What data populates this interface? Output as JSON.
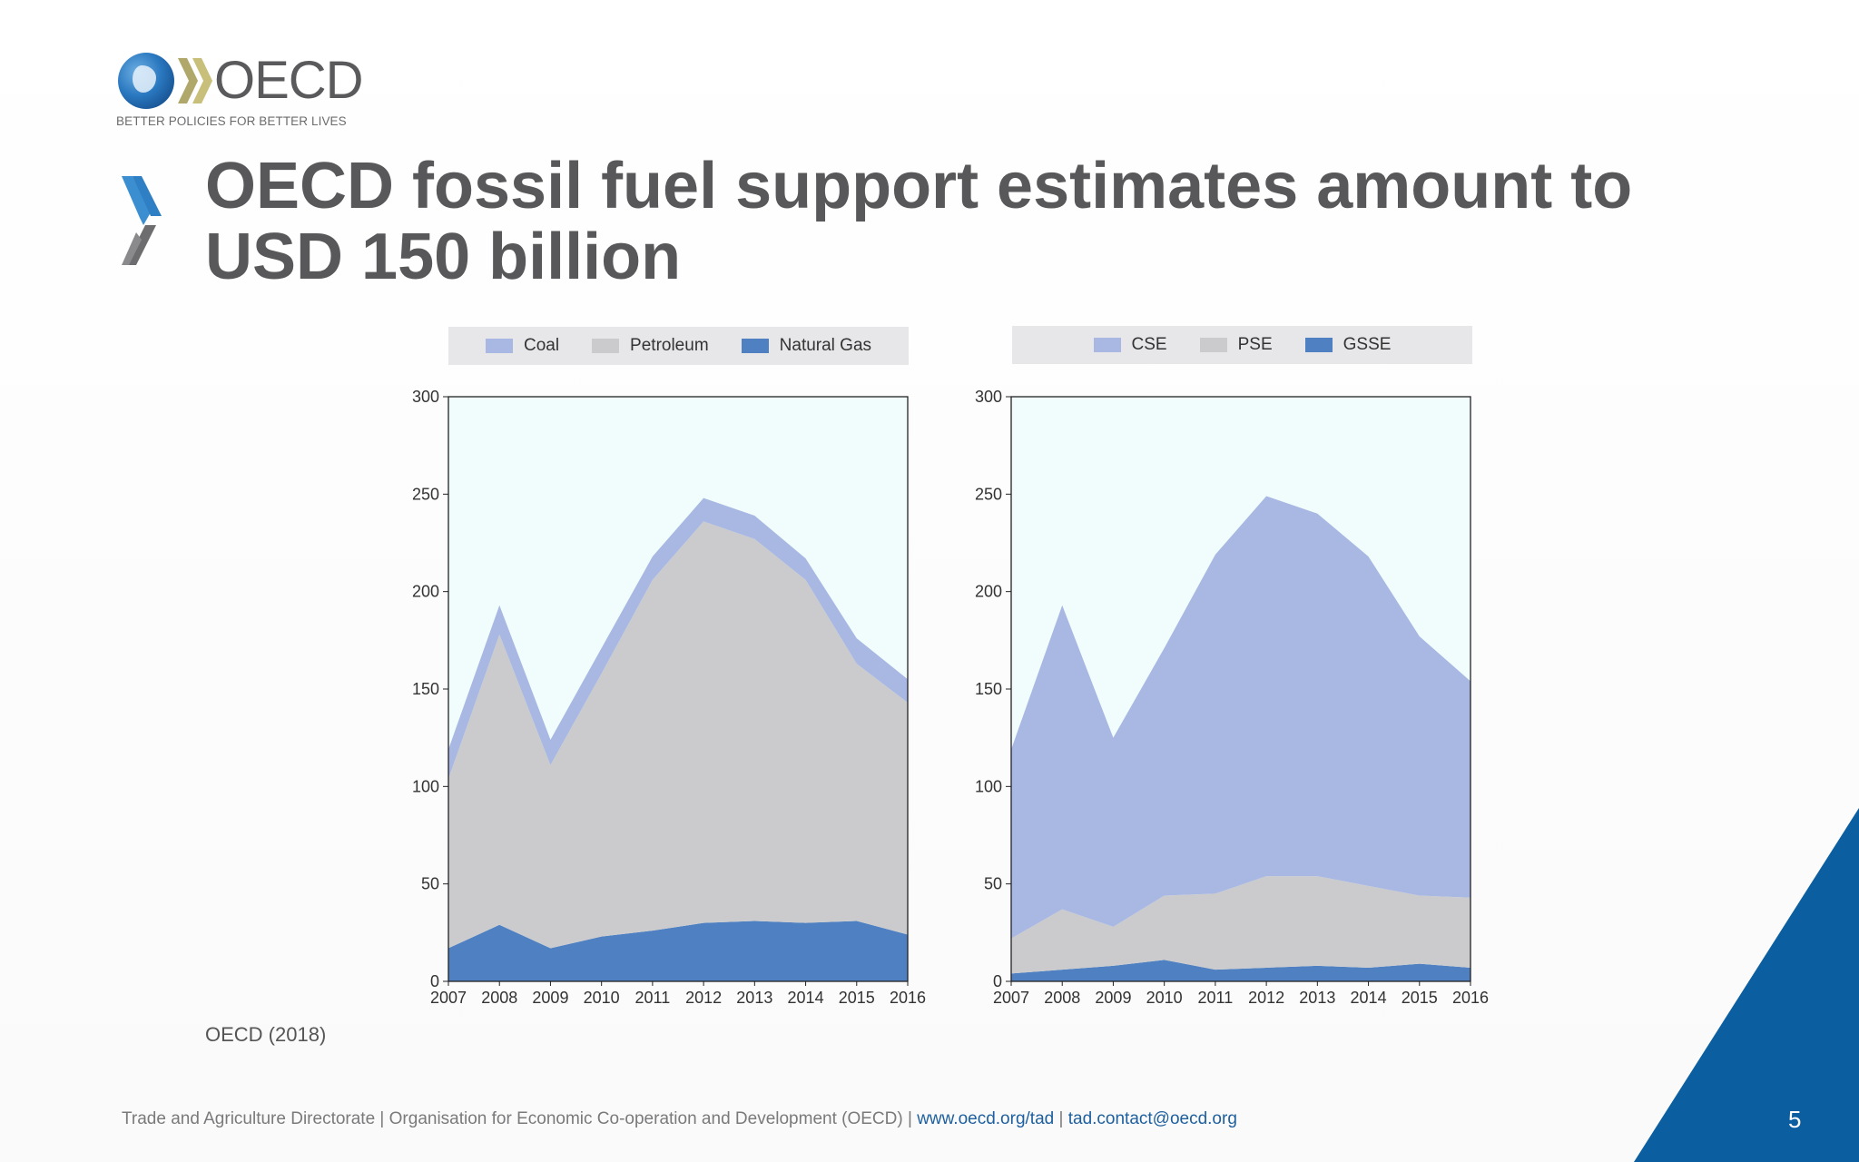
{
  "logo": {
    "wordmark": "OECD",
    "tagline": "BETTER POLICIES FOR BETTER LIVES"
  },
  "slide": {
    "title_line1": "OECD fossil fuel support estimates amount to",
    "title_line2": "USD 150 billion",
    "source": "OECD (2018)",
    "page_number": "5"
  },
  "footer": {
    "text": "Trade and Agriculture Directorate | Organisation for Economic Co-operation and Development (OECD) |",
    "link1": "www.oecd.org/tad",
    "separator": "|",
    "link2": "tad.contact@oecd.org"
  },
  "colors": {
    "title": "#58585a",
    "light_blue_series": "#a8b8e3",
    "grey_series": "#cbcbcd",
    "dark_blue_series": "#4f80c1",
    "plot_background": "#f1fdfd",
    "accent_corner": "#0b5fa0"
  },
  "chart_data": [
    {
      "type": "area",
      "stacked": true,
      "title": "",
      "xlabel": "",
      "ylabel": "",
      "x": [
        "2007",
        "2008",
        "2009",
        "2010",
        "2011",
        "2012",
        "2013",
        "2014",
        "2015",
        "2016"
      ],
      "ylim": [
        0,
        300
      ],
      "yticks": [
        "0",
        "50",
        "100",
        "150",
        "200",
        "250",
        "300"
      ],
      "legend_position": "top",
      "series": [
        {
          "name": "Natural Gas",
          "color": "#4f80c1",
          "values": [
            17,
            29,
            17,
            23,
            26,
            30,
            31,
            30,
            31,
            24
          ]
        },
        {
          "name": "Petroleum",
          "color": "#cbcbcd",
          "values": [
            87,
            149,
            94,
            135,
            180,
            206,
            196,
            176,
            132,
            119
          ]
        },
        {
          "name": "Coal",
          "color": "#a8b8e3",
          "values": [
            15,
            15,
            13,
            13,
            12,
            12,
            12,
            11,
            13,
            12
          ]
        }
      ],
      "legend_order": [
        "Coal",
        "Petroleum",
        "Natural Gas"
      ]
    },
    {
      "type": "area",
      "stacked": true,
      "title": "",
      "xlabel": "",
      "ylabel": "",
      "x": [
        "2007",
        "2008",
        "2009",
        "2010",
        "2011",
        "2012",
        "2013",
        "2014",
        "2015",
        "2016"
      ],
      "ylim": [
        0,
        300
      ],
      "yticks": [
        "0",
        "50",
        "100",
        "150",
        "200",
        "250",
        "300"
      ],
      "legend_position": "top",
      "series": [
        {
          "name": "GSSE",
          "color": "#4f80c1",
          "values": [
            4,
            6,
            8,
            11,
            6,
            7,
            8,
            7,
            9,
            7
          ]
        },
        {
          "name": "PSE",
          "color": "#cbcbcd",
          "values": [
            18,
            31,
            20,
            33,
            39,
            47,
            46,
            42,
            35,
            36
          ]
        },
        {
          "name": "CSE",
          "color": "#a8b8e3",
          "values": [
            97,
            156,
            97,
            127,
            174,
            195,
            186,
            169,
            133,
            111
          ]
        }
      ],
      "legend_order": [
        "CSE",
        "PSE",
        "GSSE"
      ]
    }
  ]
}
